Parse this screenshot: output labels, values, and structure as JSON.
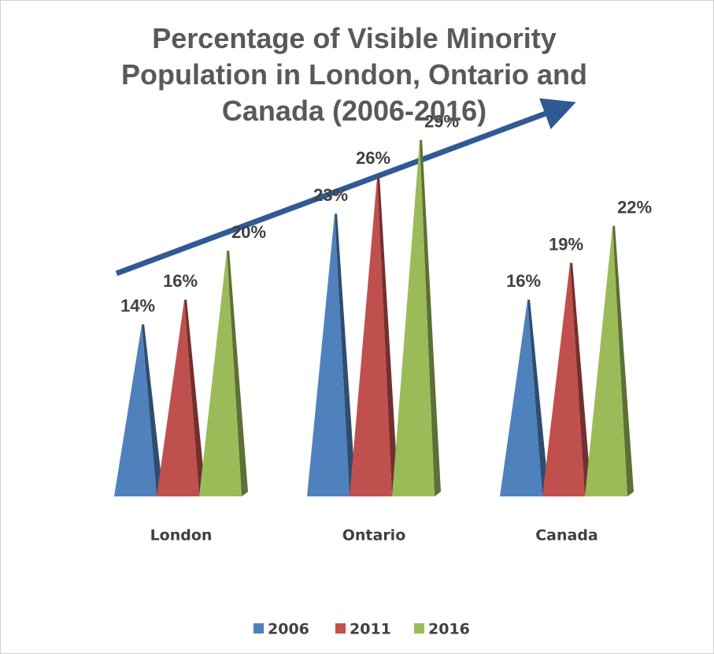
{
  "chart_data": {
    "type": "pyramid",
    "title": "Percentage of Visible Minority Population in London, Ontario and Canada (2006-2016)",
    "categories": [
      "London",
      "Ontario",
      "Canada"
    ],
    "series": [
      {
        "name": "2006",
        "color": "#4f81bd",
        "values": [
          14,
          23,
          16
        ],
        "value_labels": [
          "14%",
          "23%",
          "16%"
        ]
      },
      {
        "name": "2011",
        "color": "#c0504d",
        "values": [
          16,
          26,
          19
        ],
        "value_labels": [
          "16%",
          "26%",
          "19%"
        ]
      },
      {
        "name": "2016",
        "color": "#9bbb59",
        "values": [
          20,
          29,
          22
        ],
        "value_labels": [
          "20%",
          "29%",
          "22%"
        ]
      }
    ],
    "legend": "bottom"
  }
}
